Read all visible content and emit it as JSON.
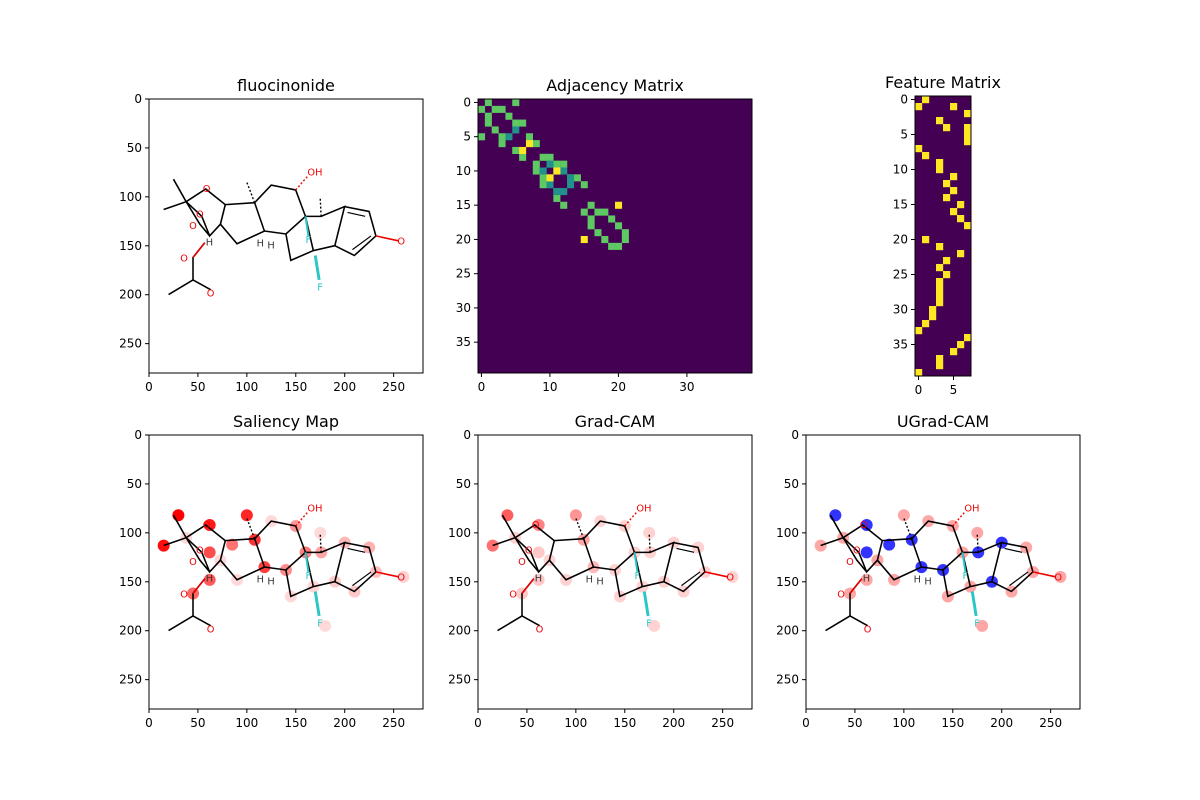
{
  "figure": {
    "background": "#ffffff"
  },
  "chart_data": [
    {
      "panel": "molecule",
      "type": "image",
      "title": "fluocinonide",
      "x_ticks": [
        "0",
        "50",
        "100",
        "150",
        "200",
        "250"
      ],
      "y_ticks": [
        "0",
        "50",
        "100",
        "150",
        "200",
        "250"
      ],
      "atom_labels": [
        "O",
        "O",
        "O",
        "O",
        "O",
        "O",
        "OH",
        "F",
        "F",
        "H",
        "H",
        "H"
      ]
    },
    {
      "panel": "adjacency",
      "type": "heatmap",
      "title": "Adjacency Matrix",
      "size": 40,
      "x_ticks": [
        "0",
        "10",
        "20",
        "30"
      ],
      "y_ticks": [
        "0",
        "5",
        "10",
        "15",
        "20",
        "25",
        "30",
        "35"
      ],
      "colormap": "viridis",
      "values_legend": {
        "0": "#440154",
        "1": "#5ec962",
        "1.5": "#21918c",
        "2": "#fde725"
      },
      "single_bonds": [
        [
          0,
          1
        ],
        [
          0,
          5
        ],
        [
          1,
          2
        ],
        [
          1,
          3
        ],
        [
          2,
          4
        ],
        [
          3,
          5
        ],
        [
          3,
          6
        ],
        [
          5,
          7
        ],
        [
          6,
          8
        ],
        [
          8,
          9
        ],
        [
          8,
          10
        ],
        [
          9,
          11
        ],
        [
          9,
          12
        ],
        [
          11,
          13
        ],
        [
          11,
          14
        ],
        [
          12,
          15
        ],
        [
          15,
          16
        ],
        [
          16,
          17
        ],
        [
          16,
          18
        ],
        [
          17,
          19
        ],
        [
          18,
          20
        ],
        [
          19,
          21
        ],
        [
          20,
          21
        ]
      ],
      "aromatic_bonds": [
        [
          4,
          5
        ],
        [
          9,
          10
        ],
        [
          10,
          11
        ],
        [
          10,
          12
        ],
        [
          11,
          13
        ],
        [
          12,
          13
        ]
      ],
      "double_bonds": [
        [
          6,
          7
        ],
        [
          10,
          11
        ],
        [
          15,
          20
        ]
      ]
    },
    {
      "panel": "features",
      "type": "heatmap",
      "title": "Feature Matrix",
      "rows": 40,
      "cols": 8,
      "x_ticks": [
        "0",
        "5"
      ],
      "y_ticks": [
        "0",
        "5",
        "10",
        "15",
        "20",
        "25",
        "30",
        "35"
      ],
      "colormap": "viridis",
      "ones": [
        [
          0,
          1
        ],
        [
          1,
          0
        ],
        [
          1,
          5
        ],
        [
          2,
          7
        ],
        [
          3,
          3
        ],
        [
          4,
          7
        ],
        [
          4,
          4
        ],
        [
          5,
          7
        ],
        [
          6,
          7
        ],
        [
          7,
          0
        ],
        [
          8,
          1
        ],
        [
          9,
          3
        ],
        [
          10,
          3
        ],
        [
          11,
          5
        ],
        [
          12,
          4
        ],
        [
          13,
          5
        ],
        [
          14,
          4
        ],
        [
          15,
          6
        ],
        [
          16,
          5
        ],
        [
          17,
          6
        ],
        [
          18,
          7
        ],
        [
          20,
          1
        ],
        [
          21,
          3
        ],
        [
          22,
          6
        ],
        [
          23,
          4
        ],
        [
          24,
          3
        ],
        [
          25,
          4
        ],
        [
          26,
          3
        ],
        [
          27,
          3
        ],
        [
          28,
          3
        ],
        [
          29,
          3
        ],
        [
          30,
          2
        ],
        [
          31,
          2
        ],
        [
          32,
          1
        ],
        [
          33,
          0
        ],
        [
          34,
          7
        ],
        [
          35,
          6
        ],
        [
          36,
          5
        ],
        [
          37,
          3
        ],
        [
          38,
          3
        ],
        [
          39,
          0
        ]
      ]
    },
    {
      "panel": "saliency",
      "type": "image",
      "title": "Saliency Map",
      "x_ticks": [
        "0",
        "50",
        "100",
        "150",
        "200",
        "250"
      ],
      "y_ticks": [
        "0",
        "50",
        "100",
        "150",
        "200",
        "250"
      ],
      "highlight_color": "#ff0000",
      "atom_scores": [
        1.0,
        0.95,
        0.9,
        0.85,
        0.8,
        0.75,
        0.7,
        0.65,
        0.6,
        0.55,
        0.5,
        0.45,
        0.4,
        0.35,
        0.3,
        0.28,
        0.25,
        0.22,
        0.2,
        0.18,
        0.16,
        0.14,
        0.12,
        0.1,
        0.08,
        0.06,
        0.05,
        0.04
      ]
    },
    {
      "panel": "gradcam",
      "type": "image",
      "title": "Grad-CAM",
      "x_ticks": [
        "0",
        "50",
        "100",
        "150",
        "200",
        "250"
      ],
      "y_ticks": [
        "0",
        "50",
        "100",
        "150",
        "200",
        "250"
      ],
      "highlight_color": "#ff0000",
      "atom_scores": [
        0.9,
        0.8,
        0.7,
        0.6,
        0.5,
        0.4,
        0.3,
        0.3,
        0.3,
        0.2
      ]
    },
    {
      "panel": "ugradcam",
      "type": "image",
      "title": "UGrad-CAM",
      "x_ticks": [
        "0",
        "50",
        "100",
        "150",
        "200",
        "250"
      ],
      "y_ticks": [
        "0",
        "50",
        "100",
        "150",
        "200",
        "250"
      ],
      "positive_color": "#ff0000",
      "negative_color": "#0000ff"
    }
  ]
}
